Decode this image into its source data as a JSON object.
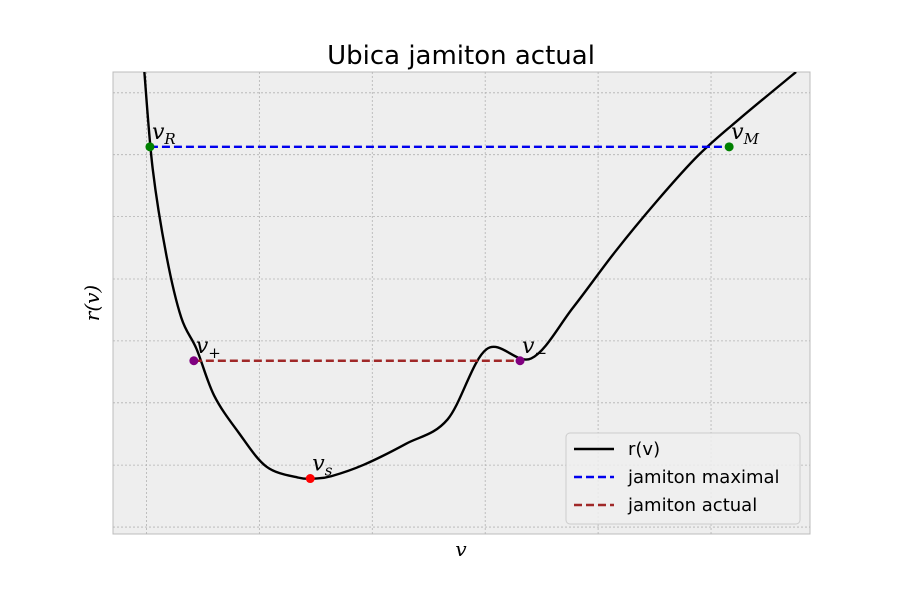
{
  "chart_data": {
    "type": "line",
    "title": "Ubica jamiton actual",
    "xlabel": "v",
    "ylabel": "r(v)",
    "xlim": [
      0.0,
      1.0
    ],
    "ylim": [
      0.0,
      1.0
    ],
    "xticks": [
      0.048,
      0.21,
      0.372,
      0.534,
      0.696,
      0.858
    ],
    "yticks": [
      0.015,
      0.149,
      0.284,
      0.418,
      0.552,
      0.687,
      0.821,
      0.955
    ],
    "tick_labels_visible": false,
    "grid": true,
    "legend_position": "lower-right",
    "series": [
      {
        "name": "r(v)",
        "style": "solid",
        "color": "#000000",
        "x": [
          0.045,
          0.057,
          0.077,
          0.098,
          0.12,
          0.145,
          0.18,
          0.22,
          0.266,
          0.29,
          0.313,
          0.36,
          0.42,
          0.48,
          0.536,
          0.6,
          0.66,
          0.72,
          0.78,
          0.84,
          0.9,
          0.98
        ],
        "y": [
          1.0,
          0.79,
          0.6,
          0.468,
          0.4,
          0.3,
          0.22,
          0.146,
          0.122,
          0.12,
          0.125,
          0.15,
          0.195,
          0.248,
          0.4,
          0.38,
          0.49,
          0.61,
          0.72,
          0.82,
          0.9,
          1.0
        ]
      },
      {
        "name": "jamiton maximal",
        "style": "dashed",
        "color": "#0000ee",
        "x": [
          0.053,
          0.884
        ],
        "y": [
          0.838,
          0.838
        ]
      },
      {
        "name": "jamiton actual",
        "style": "dashed",
        "color": "#a02828",
        "x": [
          0.116,
          0.584
        ],
        "y": [
          0.375,
          0.375
        ]
      }
    ],
    "points": [
      {
        "label_base": "v",
        "label_sub": "R",
        "x": 0.053,
        "y": 0.838,
        "color": "#008000"
      },
      {
        "label_base": "v",
        "label_sub": "M",
        "x": 0.884,
        "y": 0.838,
        "color": "#008000"
      },
      {
        "label_base": "v",
        "label_sub": "+",
        "x": 0.116,
        "y": 0.375,
        "color": "#800080"
      },
      {
        "label_base": "v",
        "label_sub": "−",
        "x": 0.584,
        "y": 0.375,
        "color": "#800080"
      },
      {
        "label_base": "v",
        "label_sub": "s",
        "x": 0.283,
        "y": 0.12,
        "color": "#ff0000"
      }
    ]
  }
}
